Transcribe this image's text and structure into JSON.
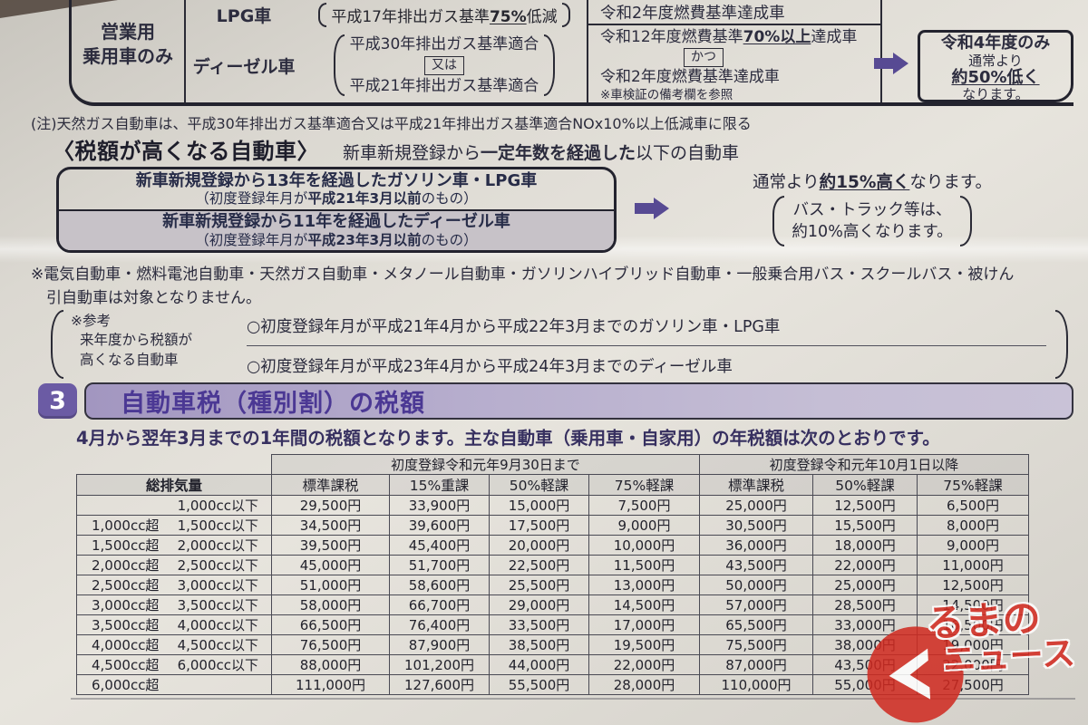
{
  "document": {
    "top_table": {
      "usage_label_line1": "営業用",
      "usage_label_line2": "乗用車のみ",
      "lpg_row": {
        "fuel": "LPG車",
        "cond_pre": "平成17年排出ガス基準",
        "cond_em": "75%",
        "cond_post": "低減"
      },
      "diesel_row": {
        "fuel": "ディーゼル車",
        "line1": "平成30年排出ガス基準適合",
        "connector": "又は",
        "line2": "平成21年排出ガス基準適合"
      },
      "right_top_row": "令和2年度燃費基準達成車",
      "right_block": {
        "line1_pre": "令和12年度燃費基準",
        "line1_em": "70%以上",
        "line1_post": "達成車",
        "connector": "かつ",
        "line2": "令和2年度燃費基準達成車",
        "note": "※車検証の備考欄を参照"
      },
      "result_box": {
        "line1": "令和4年度のみ",
        "line2": "通常より",
        "line3": "約50%低く",
        "line4": "なります。"
      }
    },
    "note_line": "(注)天然ガス自動車は、平成30年排出ガス基準適合又は平成21年排出ガス基準適合NOx10%以上低減車に限る",
    "higher_tax": {
      "heading": "〈税額が高くなる自動車〉",
      "heading_sub_pre": "新車新規登録から",
      "heading_sub_em": "一定年数を経過した",
      "heading_sub_post": "以下の自動車",
      "row1_pre": "新車新規登録から",
      "row1_em": "13年",
      "row1_post": "を経過したガソリン車・LPG車",
      "row1_sub_pre": "（初度登録年月が",
      "row1_sub_em": "平成21年3月以前",
      "row1_sub_post": "のもの）",
      "row2_pre": "新車新規登録から",
      "row2_em": "11年",
      "row2_post": "を経過したディーゼル車",
      "row2_sub_pre": "（初度登録年月が",
      "row2_sub_em": "平成23年3月以前",
      "row2_sub_post": "のもの）",
      "result_pre": "通常より",
      "result_em": "約15%高く",
      "result_post": "なります。",
      "paren_line1": "バス・トラック等は、",
      "paren_line2": "約10%高くなります。"
    },
    "exclusion_note_line1": "※電気自動車・燃料電池自動車・天然ガス自動車・メタノール自動車・ガソリンハイブリッド自動車・一般乗合用バス・スクールバス・被けん",
    "exclusion_note_line2": "引自動車は対象となりません。",
    "reference": {
      "label_line1": "※参考",
      "label_line2": "来年度から税額が",
      "label_line3": "高くなる自動車",
      "item1": "○初度登録年月が平成21年4月から平成22年3月までのガソリン車・LPG車",
      "item2": "○初度登録年月が平成23年4月から平成24年3月までのディーゼル車"
    },
    "section3": {
      "number": "3",
      "title": "自動車税（種別割）の税額",
      "subtitle": "4月から翌年3月までの1年間の税額となります。主な自動車（乗用車・自家用）の年税額は次のとおりです。"
    },
    "watermark": {
      "line1": "るまの",
      "line2": "ニュース",
      "color": "#d3291f"
    }
  },
  "tax_table": {
    "displacement_header": "総排気量",
    "group1_header": "初度登録令和元年9月30日まで",
    "group2_header": "初度登録令和元年10月1日以降",
    "group1_subheaders": [
      "標準課税",
      "15%重課",
      "50%軽課",
      "75%軽課"
    ],
    "group2_subheaders": [
      "標準課税",
      "50%軽課",
      "75%軽課"
    ],
    "rows": [
      {
        "over": "",
        "under": "1,000cc以下",
        "values": [
          "29,500円",
          "33,900円",
          "15,000円",
          "7,500円",
          "25,000円",
          "12,500円",
          "6,500円"
        ]
      },
      {
        "over": "1,000cc超",
        "under": "1,500cc以下",
        "values": [
          "34,500円",
          "39,600円",
          "17,500円",
          "9,000円",
          "30,500円",
          "15,500円",
          "8,000円"
        ]
      },
      {
        "over": "1,500cc超",
        "under": "2,000cc以下",
        "values": [
          "39,500円",
          "45,400円",
          "20,000円",
          "10,000円",
          "36,000円",
          "18,000円",
          "9,000円"
        ]
      },
      {
        "over": "2,000cc超",
        "under": "2,500cc以下",
        "values": [
          "45,000円",
          "51,700円",
          "22,500円",
          "11,500円",
          "43,500円",
          "22,000円",
          "11,000円"
        ]
      },
      {
        "over": "2,500cc超",
        "under": "3,000cc以下",
        "values": [
          "51,000円",
          "58,600円",
          "25,500円",
          "13,000円",
          "50,000円",
          "25,000円",
          "12,500円"
        ]
      },
      {
        "over": "3,000cc超",
        "under": "3,500cc以下",
        "values": [
          "58,000円",
          "66,700円",
          "29,000円",
          "14,500円",
          "57,000円",
          "28,500円",
          "14,500円"
        ]
      },
      {
        "over": "3,500cc超",
        "under": "4,000cc以下",
        "values": [
          "66,500円",
          "76,400円",
          "33,500円",
          "17,000円",
          "65,500円",
          "33,000円",
          "16,500円"
        ]
      },
      {
        "over": "4,000cc超",
        "under": "4,500cc以下",
        "values": [
          "76,500円",
          "87,900円",
          "38,500円",
          "19,500円",
          "75,500円",
          "38,000円",
          "19,000円"
        ]
      },
      {
        "over": "4,500cc超",
        "under": "6,000cc以下",
        "values": [
          "88,000円",
          "101,200円",
          "44,000円",
          "22,000円",
          "87,000円",
          "43,500円",
          "22,000円"
        ]
      },
      {
        "over": "6,000cc超",
        "under": "",
        "values": [
          "111,000円",
          "127,600円",
          "55,500円",
          "28,000円",
          "110,000円",
          "55,000円",
          "27,500円"
        ]
      }
    ]
  }
}
